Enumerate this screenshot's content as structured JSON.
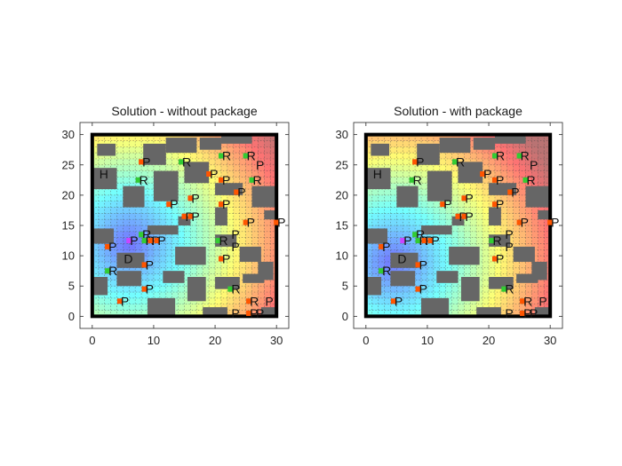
{
  "figure": {
    "background": "#ffffff",
    "colors": {
      "wall": "#666666",
      "border": "#000000",
      "robot": "#33cc33",
      "pickup": "#ff5500",
      "dropoff": "#cc44ff",
      "grid_dots": "#444444"
    }
  },
  "chart_data": [
    {
      "type": "heatmap",
      "title": "Solution - without package",
      "xlim": [
        -2,
        32
      ],
      "ylim": [
        -2,
        32
      ],
      "xticks": [
        0,
        10,
        20,
        30
      ],
      "yticks": [
        0,
        5,
        10,
        15,
        20,
        25,
        30
      ],
      "grid": false,
      "heat_center": [
        6,
        12
      ],
      "walls": [
        [
          0.8,
          26.5,
          3,
          2
        ],
        [
          8.3,
          25,
          3.7,
          3.5
        ],
        [
          12,
          27,
          5,
          2.5
        ],
        [
          17.5,
          27.5,
          3.5,
          2
        ],
        [
          21,
          28.5,
          5,
          1.5
        ],
        [
          0,
          21,
          4,
          3.5
        ],
        [
          5,
          18,
          3.5,
          3.5
        ],
        [
          10,
          19,
          4,
          5
        ],
        [
          15,
          22,
          4,
          3.5
        ],
        [
          20,
          20,
          4.5,
          2
        ],
        [
          26,
          18,
          4,
          3.5
        ],
        [
          14,
          15,
          2,
          1.5
        ],
        [
          20,
          15,
          2,
          3
        ],
        [
          28,
          16,
          2,
          1.5
        ],
        [
          0,
          12,
          3.5,
          2.5
        ],
        [
          9,
          13.5,
          5,
          1.5
        ],
        [
          20,
          11.5,
          3.5,
          2
        ],
        [
          24,
          9,
          3.5,
          2.5
        ],
        [
          4,
          8,
          4.5,
          2.5
        ],
        [
          13.5,
          8.5,
          5,
          3
        ],
        [
          27,
          6,
          2.5,
          3
        ],
        [
          0,
          3.5,
          2.5,
          3
        ],
        [
          4,
          5,
          4,
          2.5
        ],
        [
          11.5,
          5.5,
          3.5,
          2
        ],
        [
          15.5,
          2.5,
          3,
          4
        ],
        [
          20,
          4.5,
          4,
          2
        ],
        [
          24.5,
          5.5,
          3.5,
          1.5
        ],
        [
          9,
          0,
          4.5,
          3
        ],
        [
          18,
          0,
          4,
          1.5
        ],
        [
          27.5,
          0,
          2.5,
          1.5
        ]
      ],
      "labels": [
        {
          "text": "H",
          "x": 1,
          "y": 23.5,
          "c": "none"
        },
        {
          "text": "P",
          "x": 8,
          "y": 25.5,
          "c": "pickup"
        },
        {
          "text": "R",
          "x": 14.5,
          "y": 25.5,
          "c": "robot"
        },
        {
          "text": "R",
          "x": 21,
          "y": 26.5,
          "c": "robot"
        },
        {
          "text": "R",
          "x": 25,
          "y": 26.5,
          "c": "robot"
        },
        {
          "text": "P",
          "x": 26.5,
          "y": 25,
          "c": "none"
        },
        {
          "text": "R",
          "x": 7.5,
          "y": 22.5,
          "c": "robot"
        },
        {
          "text": "P",
          "x": 19,
          "y": 23.5,
          "c": "pickup"
        },
        {
          "text": "P",
          "x": 21,
          "y": 22.5,
          "c": "pickup"
        },
        {
          "text": "R",
          "x": 26,
          "y": 22.5,
          "c": "robot"
        },
        {
          "text": "P",
          "x": 23.5,
          "y": 20.5,
          "c": "pickup"
        },
        {
          "text": "P",
          "x": 16,
          "y": 19.5,
          "c": "pickup"
        },
        {
          "text": "P",
          "x": 12.5,
          "y": 18.5,
          "c": "pickup"
        },
        {
          "text": "P",
          "x": 21,
          "y": 18.5,
          "c": "pickup"
        },
        {
          "text": "P",
          "x": 15,
          "y": 16.5,
          "c": "pickup"
        },
        {
          "text": "P",
          "x": 16,
          "y": 16.5,
          "c": "pickup"
        },
        {
          "text": "P",
          "x": 25,
          "y": 15.5,
          "c": "pickup"
        },
        {
          "text": "P",
          "x": 30,
          "y": 15.5,
          "c": "pickup"
        },
        {
          "text": "R",
          "x": 8,
          "y": 13.5,
          "c": "robot"
        },
        {
          "text": "P",
          "x": 22.5,
          "y": 13.5,
          "c": "none"
        },
        {
          "text": "P",
          "x": 2.5,
          "y": 11.5,
          "c": "pickup"
        },
        {
          "text": "P",
          "x": 6,
          "y": 12.5,
          "c": "dropoff"
        },
        {
          "text": "R",
          "x": 8.5,
          "y": 12.5,
          "c": "robot"
        },
        {
          "text": "P",
          "x": 9.5,
          "y": 12.5,
          "c": "pickup"
        },
        {
          "text": "P",
          "x": 10.5,
          "y": 12.5,
          "c": "pickup"
        },
        {
          "text": "R",
          "x": 20.5,
          "y": 12.5,
          "c": "robot"
        },
        {
          "text": "P",
          "x": 22.5,
          "y": 11.5,
          "c": "none"
        },
        {
          "text": "D",
          "x": 5,
          "y": 9.5,
          "c": "none"
        },
        {
          "text": "P",
          "x": 8.5,
          "y": 8.5,
          "c": "pickup"
        },
        {
          "text": "P",
          "x": 21,
          "y": 9.5,
          "c": "pickup"
        },
        {
          "text": "R",
          "x": 2.5,
          "y": 7.5,
          "c": "robot"
        },
        {
          "text": "P",
          "x": 8.5,
          "y": 4.5,
          "c": "pickup"
        },
        {
          "text": "R",
          "x": 22.5,
          "y": 4.5,
          "c": "robot"
        },
        {
          "text": "P",
          "x": 4.5,
          "y": 2.5,
          "c": "pickup"
        },
        {
          "text": "R",
          "x": 25.5,
          "y": 2.5,
          "c": "pickup"
        },
        {
          "text": "P",
          "x": 28,
          "y": 2.5,
          "c": "none"
        },
        {
          "text": "P",
          "x": 22.5,
          "y": 0.5,
          "c": "none"
        },
        {
          "text": "P",
          "x": 25.5,
          "y": 0.5,
          "c": "pickup"
        },
        {
          "text": "P",
          "x": 26.5,
          "y": 0.5,
          "c": "none"
        }
      ]
    },
    {
      "type": "heatmap",
      "title": "Solution - with package",
      "xlim": [
        -2,
        32
      ],
      "ylim": [
        -2,
        32
      ],
      "xticks": [
        0,
        10,
        20,
        30
      ],
      "yticks": [
        0,
        5,
        10,
        15,
        20,
        25,
        30
      ],
      "grid": false,
      "heat_center": [
        4.5,
        9
      ],
      "walls": [
        [
          0.8,
          26.5,
          3,
          2
        ],
        [
          8.3,
          25,
          3.7,
          3.5
        ],
        [
          12,
          27,
          5,
          2.5
        ],
        [
          17.5,
          27.5,
          3.5,
          2
        ],
        [
          21,
          28.5,
          5,
          1.5
        ],
        [
          0,
          21,
          4,
          3.5
        ],
        [
          5,
          18,
          3.5,
          3.5
        ],
        [
          10,
          19,
          4,
          5
        ],
        [
          15,
          22,
          4,
          3.5
        ],
        [
          20,
          20,
          4.5,
          2
        ],
        [
          26,
          18,
          4,
          3.5
        ],
        [
          14,
          15,
          2,
          1.5
        ],
        [
          20,
          15,
          2,
          3
        ],
        [
          28,
          16,
          2,
          1.5
        ],
        [
          0,
          12,
          3.5,
          2.5
        ],
        [
          9,
          13.5,
          5,
          1.5
        ],
        [
          20,
          11.5,
          3.5,
          2
        ],
        [
          24,
          9,
          3.5,
          2.5
        ],
        [
          4,
          8,
          4.5,
          2.5
        ],
        [
          13.5,
          8.5,
          5,
          3
        ],
        [
          27,
          6,
          2.5,
          3
        ],
        [
          0,
          3.5,
          2.5,
          3
        ],
        [
          4,
          5,
          4,
          2.5
        ],
        [
          11.5,
          5.5,
          3.5,
          2
        ],
        [
          15.5,
          2.5,
          3,
          4
        ],
        [
          20,
          4.5,
          4,
          2
        ],
        [
          24.5,
          5.5,
          3.5,
          1.5
        ],
        [
          9,
          0,
          4.5,
          3
        ],
        [
          18,
          0,
          4,
          1.5
        ],
        [
          27.5,
          0,
          2.5,
          1.5
        ]
      ],
      "labels": [
        {
          "text": "H",
          "x": 1,
          "y": 23.5,
          "c": "none"
        },
        {
          "text": "P",
          "x": 8,
          "y": 25.5,
          "c": "pickup"
        },
        {
          "text": "R",
          "x": 14.5,
          "y": 25.5,
          "c": "robot"
        },
        {
          "text": "R",
          "x": 21,
          "y": 26.5,
          "c": "robot"
        },
        {
          "text": "R",
          "x": 25,
          "y": 26.5,
          "c": "robot"
        },
        {
          "text": "P",
          "x": 26.5,
          "y": 25,
          "c": "none"
        },
        {
          "text": "R",
          "x": 7.5,
          "y": 22.5,
          "c": "robot"
        },
        {
          "text": "P",
          "x": 19,
          "y": 23.5,
          "c": "pickup"
        },
        {
          "text": "P",
          "x": 21,
          "y": 22.5,
          "c": "pickup"
        },
        {
          "text": "R",
          "x": 26,
          "y": 22.5,
          "c": "robot"
        },
        {
          "text": "P",
          "x": 23.5,
          "y": 20.5,
          "c": "pickup"
        },
        {
          "text": "P",
          "x": 16,
          "y": 19.5,
          "c": "pickup"
        },
        {
          "text": "P",
          "x": 12.5,
          "y": 18.5,
          "c": "pickup"
        },
        {
          "text": "P",
          "x": 21,
          "y": 18.5,
          "c": "pickup"
        },
        {
          "text": "P",
          "x": 15,
          "y": 16.5,
          "c": "pickup"
        },
        {
          "text": "P",
          "x": 16,
          "y": 16.5,
          "c": "pickup"
        },
        {
          "text": "P",
          "x": 25,
          "y": 15.5,
          "c": "pickup"
        },
        {
          "text": "P",
          "x": 30,
          "y": 15.5,
          "c": "pickup"
        },
        {
          "text": "R",
          "x": 8,
          "y": 13.5,
          "c": "robot"
        },
        {
          "text": "P",
          "x": 22.5,
          "y": 13.5,
          "c": "none"
        },
        {
          "text": "P",
          "x": 2.5,
          "y": 11.5,
          "c": "pickup"
        },
        {
          "text": "P",
          "x": 6,
          "y": 12.5,
          "c": "dropoff"
        },
        {
          "text": "R",
          "x": 8.5,
          "y": 12.5,
          "c": "robot"
        },
        {
          "text": "P",
          "x": 9.5,
          "y": 12.5,
          "c": "pickup"
        },
        {
          "text": "P",
          "x": 10.5,
          "y": 12.5,
          "c": "pickup"
        },
        {
          "text": "R",
          "x": 20.5,
          "y": 12.5,
          "c": "robot"
        },
        {
          "text": "P",
          "x": 22.5,
          "y": 11.5,
          "c": "none"
        },
        {
          "text": "D",
          "x": 5,
          "y": 9.5,
          "c": "none"
        },
        {
          "text": "P",
          "x": 8.5,
          "y": 8.5,
          "c": "pickup"
        },
        {
          "text": "P",
          "x": 21,
          "y": 9.5,
          "c": "pickup"
        },
        {
          "text": "R",
          "x": 2.5,
          "y": 7.5,
          "c": "robot"
        },
        {
          "text": "P",
          "x": 8.5,
          "y": 4.5,
          "c": "pickup"
        },
        {
          "text": "R",
          "x": 22.5,
          "y": 4.5,
          "c": "robot"
        },
        {
          "text": "P",
          "x": 4.5,
          "y": 2.5,
          "c": "pickup"
        },
        {
          "text": "R",
          "x": 25.5,
          "y": 2.5,
          "c": "pickup"
        },
        {
          "text": "P",
          "x": 28,
          "y": 2.5,
          "c": "none"
        },
        {
          "text": "P",
          "x": 22.5,
          "y": 0.5,
          "c": "none"
        },
        {
          "text": "P",
          "x": 25.5,
          "y": 0.5,
          "c": "pickup"
        },
        {
          "text": "P",
          "x": 26.5,
          "y": 0.5,
          "c": "none"
        }
      ]
    }
  ]
}
